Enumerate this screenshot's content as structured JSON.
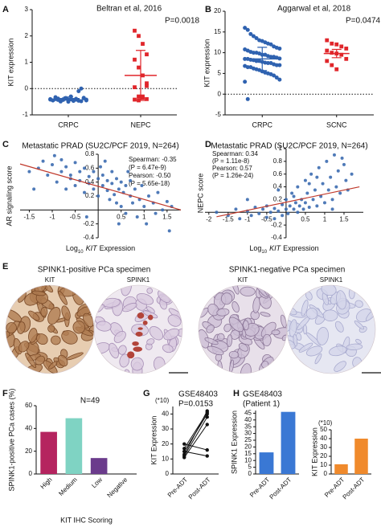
{
  "chart_data": [
    {
      "type": "dotplot",
      "label": "A",
      "title": "Beltran et al, 2016",
      "annotation": "P=0.0018",
      "ylabel": "KIT expression",
      "categories": [
        "CRPC",
        "NEPC"
      ],
      "groups": [
        {
          "marker": "circle",
          "color": "#2f62b0",
          "mean": -0.38,
          "error": 0.06,
          "values": [
            -0.42,
            -0.45,
            -0.4,
            -0.38,
            -0.47,
            -0.43,
            -0.36,
            -0.5,
            -0.41,
            -0.44,
            -0.39,
            -0.46,
            -0.48,
            -0.37,
            -0.42,
            -0.4,
            -0.45,
            -0.33,
            -0.43,
            -0.49,
            -0.41,
            -0.38,
            -0.44,
            -0.3,
            -0.47,
            -0.42,
            -0.1,
            0.0,
            -0.35,
            -0.45
          ]
        },
        {
          "marker": "square",
          "color": "#e0262b",
          "mean": 0.5,
          "error": 0.95,
          "values": [
            2.2,
            2.0,
            1.7,
            1.3,
            1.1,
            0.8,
            0.5,
            0.2,
            0.05,
            -0.3,
            -0.35,
            -0.4,
            -0.42,
            -0.45,
            -0.3,
            0.1
          ]
        }
      ],
      "hline": 0,
      "ylim": [
        -1,
        3
      ],
      "yticks": [
        -1,
        0,
        1,
        2,
        3
      ]
    },
    {
      "type": "dotplot",
      "label": "B",
      "title": "Aggarwal et al, 2018",
      "annotation": "P=0.0474",
      "ylabel": "KIT expression",
      "categories": [
        "CRPC",
        "SCNC"
      ],
      "groups": [
        {
          "marker": "circle",
          "color": "#2f62b0",
          "mean": 8.5,
          "error": 2.8,
          "values": [
            16,
            15.5,
            14.5,
            14,
            13.5,
            13,
            12.8,
            12.5,
            12.2,
            12,
            11.5,
            11.2,
            11,
            10.8,
            10.5,
            10.2,
            10,
            10,
            9.8,
            9.5,
            9.5,
            9.2,
            9,
            9,
            8.8,
            8.6,
            8.5,
            8.5,
            8.3,
            8.2,
            8,
            8,
            7.8,
            7.6,
            7.5,
            7.5,
            7.2,
            7,
            7,
            6.8,
            6.5,
            6.5,
            6.2,
            6,
            5.8,
            5.5,
            5.2,
            5,
            4.8,
            4.5,
            4,
            3.5,
            3,
            -1.2
          ]
        },
        {
          "marker": "square",
          "color": "#e0262b",
          "mean": 9.8,
          "error": 1.0,
          "values": [
            13,
            12.2,
            12,
            11.5,
            11,
            10.5,
            10,
            9.8,
            9.5,
            8.5,
            8,
            7,
            6
          ]
        }
      ],
      "hline": 0,
      "ylim": [
        -5,
        20
      ],
      "yticks": [
        -5,
        0,
        5,
        10,
        15,
        20
      ]
    },
    {
      "type": "scatter",
      "label": "C",
      "title": "Metastatic PRAD (SU2C/PCF 2019, N=264)",
      "annotations": [
        "Spearman: -0.35",
        "(P = 6.47e-9)",
        "Pearson: -0.50",
        "(P = 5.65e-18)"
      ],
      "ylabel": "AR signaling score",
      "xlabel": [
        "Log",
        "10",
        "KIT",
        "Expression"
      ],
      "color": "#3c6cb0",
      "x": [
        -1.5,
        -1.3,
        -1.2,
        -1.1,
        -1.0,
        -0.9,
        -0.8,
        -0.8,
        -0.7,
        -0.7,
        -0.6,
        -0.6,
        -0.5,
        -0.5,
        -0.4,
        -0.4,
        -0.3,
        -0.3,
        -0.2,
        -0.2,
        -0.1,
        -0.1,
        0,
        0,
        0.05,
        0.1,
        0.1,
        0.2,
        0.2,
        0.25,
        0.3,
        0.3,
        0.35,
        0.4,
        0.4,
        0.45,
        0.5,
        0.5,
        0.55,
        0.6,
        0.6,
        0.7,
        0.7,
        0.75,
        0.8,
        0.85,
        0.9,
        0.95,
        1.0,
        1.05,
        1.1,
        1.2,
        1.25,
        1.3,
        1.4,
        1.5,
        1.55,
        1.6,
        -0.95,
        0.15,
        -1.4,
        0.65,
        -0.25,
        0.45
      ],
      "y": [
        0.55,
        0.6,
        0.7,
        0.5,
        0.65,
        0.4,
        0.55,
        0.72,
        0.3,
        0.62,
        0.5,
        0.45,
        0.68,
        0.35,
        0.55,
        0.42,
        0.6,
        0.25,
        0.48,
        0.38,
        0.55,
        0.3,
        0.45,
        0.2,
        0.62,
        0.35,
        0.5,
        0.28,
        0.42,
        0.15,
        0.55,
        0.38,
        0.22,
        0.45,
        0.1,
        0.3,
        0.4,
        0.05,
        0.25,
        0.35,
        -0.05,
        0.2,
        0.42,
        0.1,
        0.3,
        -0.1,
        0.15,
        0.35,
        0.05,
        -0.2,
        0.2,
        0.1,
        -0.05,
        0.25,
        0.0,
        0.12,
        -0.3,
        0.05,
        0.78,
        0.7,
        0.3,
        0.55,
        -0.1,
        -0.2
      ],
      "fit": {
        "color": "#c0392b",
        "x": [
          -1.7,
          1.8
        ],
        "y": [
          0.66,
          0.0
        ]
      },
      "xlim": [
        -1.7,
        1.8
      ],
      "ylim": [
        -0.4,
        0.8
      ],
      "xticks": [
        -1.5,
        -1,
        -0.5,
        0.5,
        1,
        1.5
      ],
      "yticks": [
        -0.4,
        -0.2,
        0.2,
        0.4,
        0.6,
        0.8
      ]
    },
    {
      "type": "scatter",
      "label": "D",
      "title": "Metastatic PRAD (SU2C/PCF 2019, N=264)",
      "annotations": [
        "Spearman: 0.34",
        "(P = 1.11e-8)",
        "Pearson: 0.57",
        "(P = 1.26e-24)"
      ],
      "ylabel": "NEPC score",
      "xlabel": [
        "Log",
        "10",
        "KIT",
        "Expression"
      ],
      "color": "#3c6cb0",
      "x": [
        -1.8,
        -1.5,
        -1.3,
        -1.2,
        -1.0,
        -0.9,
        -0.8,
        -0.7,
        -0.6,
        -0.5,
        -0.5,
        -0.4,
        -0.3,
        -0.3,
        -0.2,
        -0.1,
        -0.1,
        0,
        0,
        0.05,
        0.1,
        0.15,
        0.2,
        0.25,
        0.3,
        0.3,
        0.35,
        0.4,
        0.45,
        0.5,
        0.5,
        0.55,
        0.6,
        0.65,
        0.7,
        0.75,
        0.8,
        0.85,
        0.9,
        0.95,
        1.0,
        1.05,
        1.1,
        1.15,
        1.2,
        1.25,
        1.3,
        1.35,
        1.4,
        1.5,
        1.55,
        1.6,
        1.7,
        1.2,
        -0.2,
        0.6,
        0.2,
        -1.0,
        1.45,
        0.8
      ],
      "y": [
        0.0,
        -0.05,
        0.05,
        -0.1,
        0.02,
        -0.05,
        0.08,
        -0.02,
        0.05,
        -0.08,
        0.1,
        0.0,
        0.06,
        -0.1,
        0.02,
        0.12,
        -0.05,
        0.05,
        0.2,
        -0.02,
        0.1,
        0.3,
        0.05,
        0.15,
        0.0,
        0.4,
        0.1,
        0.2,
        0.05,
        0.5,
        0.15,
        0.3,
        0.08,
        0.6,
        0.2,
        0.35,
        0.1,
        0.7,
        0.25,
        0.45,
        0.15,
        0.8,
        0.35,
        0.55,
        0.2,
        0.9,
        0.4,
        0.65,
        0.3,
        0.75,
        0.5,
        0.35,
        0.6,
        0.05,
        0.35,
        0.45,
        0.25,
        0.2,
        0.85,
        0.55
      ],
      "fit": {
        "color": "#c0392b",
        "x": [
          -1.8,
          1.9
        ],
        "y": [
          -0.07,
          0.4
        ]
      },
      "xlim": [
        -2.1,
        2
      ],
      "ylim": [
        -0.4,
        1
      ],
      "xticks": [
        -2,
        -1.5,
        -1,
        -0.5,
        0.5,
        1,
        1.5
      ],
      "yticks": [
        -0.4,
        -0.2,
        0.2,
        0.4,
        0.6,
        0.8,
        1
      ]
    },
    {
      "type": "image",
      "label": "E",
      "panels": [
        {
          "title": "SPINK1-positive PCa specimen",
          "stains": [
            "KIT",
            "SPINK1"
          ]
        },
        {
          "title": "SPINK1-negative PCa specimen",
          "stains": [
            "KIT",
            "SPINK1"
          ]
        }
      ]
    },
    {
      "type": "bar",
      "label": "F",
      "title": "N=49",
      "ylabel": "SPINK1-positive PCa cases (%)",
      "xlabel": "KIT IHC Scoring",
      "categories": [
        "High",
        "Medium",
        "Low",
        "Negative"
      ],
      "values": [
        37,
        49,
        14,
        0
      ],
      "colors": [
        "#b5245f",
        "#7fd3c3",
        "#6b3b8c",
        "#4b2c6f"
      ],
      "ylim": [
        0,
        60
      ],
      "yticks": [
        0,
        20,
        40,
        60
      ]
    },
    {
      "type": "paired",
      "label": "G",
      "title": "GSE48403",
      "annotation": "P=0.0153",
      "unit": "(*10)",
      "ylabel": "KIT Expression",
      "categories": [
        "Pre-ADT",
        "Post-ADT"
      ],
      "series": [
        {
          "values": [
            12,
            38
          ]
        },
        {
          "values": [
            15,
            40
          ]
        },
        {
          "values": [
            17,
            41
          ]
        },
        {
          "values": [
            13,
            42
          ]
        },
        {
          "values": [
            11,
            33
          ]
        },
        {
          "values": [
            20,
            16
          ]
        },
        {
          "values": [
            15,
            12
          ]
        }
      ],
      "ylim": [
        0,
        45
      ],
      "yticks": [
        0,
        10,
        20,
        30,
        40
      ]
    },
    {
      "type": "bar",
      "label": "H",
      "title": "GSE48403",
      "subtitle": "(Patient 1)",
      "ylabel": "SPINK1 Expression",
      "categories": [
        "Pre-ADT",
        "Post-ADT"
      ],
      "values": [
        16,
        46
      ],
      "colors": [
        "#3a78d4",
        "#3a78d4"
      ],
      "ylim": [
        0,
        47
      ],
      "yticks": [
        0,
        5,
        10,
        15,
        20,
        25,
        30,
        35,
        40,
        45
      ]
    },
    {
      "type": "bar",
      "unit": "(*10)",
      "ylabel": "KIT Expression",
      "categories": [
        "Pre-ADT",
        "Post-ADT"
      ],
      "values": [
        11,
        40
      ],
      "colors": [
        "#f08a2c",
        "#f08a2c"
      ],
      "ylim": [
        0,
        50
      ],
      "yticks": [
        0,
        10,
        20,
        30,
        40,
        50
      ]
    }
  ]
}
